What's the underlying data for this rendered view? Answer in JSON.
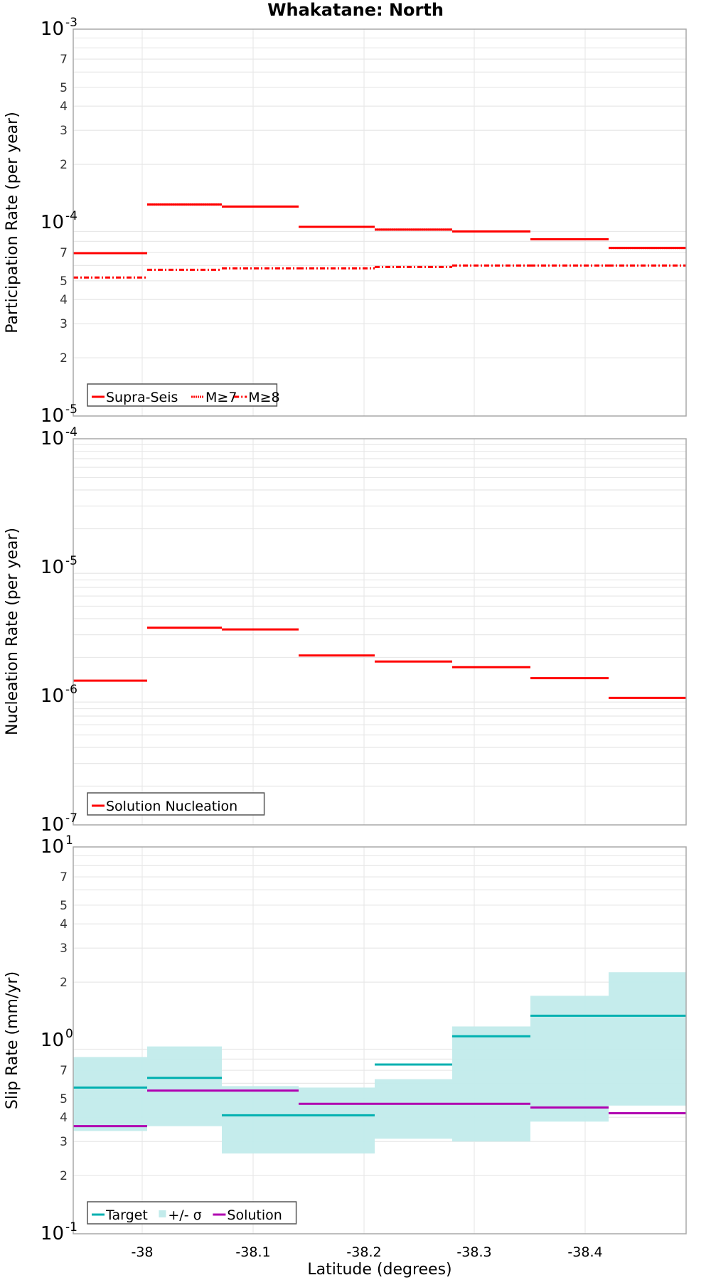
{
  "chart_data": [
    {
      "type": "line",
      "title": "Whakatane: North",
      "xlabel": "Latitude (degrees)",
      "ylabel": "Participation Rate (per year)",
      "yscale": "log",
      "ylim": [
        1e-05,
        0.001
      ],
      "xlim": [
        -37.938,
        -38.491
      ],
      "grid": true,
      "legend_position": "lower left",
      "x_ticks": [
        "-38",
        "-38.1",
        "-38.2",
        "-38.3",
        "-38.4"
      ],
      "y_ticks_major": [
        "10^-3",
        "10^-4",
        "10^-5"
      ],
      "y_ticks_minor": [
        "7",
        "5",
        "4",
        "3",
        "2",
        "7",
        "5",
        "4",
        "3",
        "2"
      ],
      "segments_latitude": [
        -37.938,
        -38.005,
        -38.072,
        -38.142,
        -38.21,
        -38.28,
        -38.351,
        -38.421,
        -38.491
      ],
      "series": [
        {
          "name": "Supra-Seis",
          "style": "solid",
          "color": "#ff0000",
          "values": [
            6.95e-05,
            0.000124,
            0.000121,
            9.5e-05,
            9.2e-05,
            9e-05,
            8.2e-05,
            7.4e-05
          ]
        },
        {
          "name": "M≥7",
          "style": "dotted",
          "color": "#ff0000",
          "values": [
            6.95e-05,
            0.000124,
            0.000121,
            9.5e-05,
            9.2e-05,
            9e-05,
            8.2e-05,
            7.4e-05
          ]
        },
        {
          "name": "M≥8",
          "style": "dashdot",
          "color": "#ff0000",
          "values": [
            5.2e-05,
            5.7e-05,
            5.8e-05,
            5.8e-05,
            5.9e-05,
            6e-05,
            6e-05,
            6e-05
          ]
        }
      ]
    },
    {
      "type": "line",
      "title": "",
      "xlabel": "",
      "ylabel": "Nucleation Rate (per year)",
      "yscale": "log",
      "ylim": [
        1e-07,
        0.0001
      ],
      "grid": true,
      "legend_position": "lower left",
      "y_ticks_major": [
        "10^-4",
        "10^-5",
        "10^-6",
        "10^-7"
      ],
      "series": [
        {
          "name": "Solution Nucleation",
          "style": "solid",
          "color": "#ff0000",
          "values": [
            1.32e-06,
            3.4e-06,
            3.3e-06,
            2.07e-06,
            1.86e-06,
            1.68e-06,
            1.38e-06,
            9.7e-07
          ]
        }
      ]
    },
    {
      "type": "area",
      "title": "",
      "xlabel": "Latitude (degrees)",
      "ylabel": "Slip Rate (mm/yr)",
      "yscale": "log",
      "ylim": [
        0.1,
        10
      ],
      "grid": true,
      "legend_position": "lower left",
      "x_ticks": [
        "-38",
        "-38.1",
        "-38.2",
        "-38.3",
        "-38.4"
      ],
      "y_ticks_major": [
        "10^1",
        "10^0",
        "10^-1"
      ],
      "y_ticks_minor": [
        "7",
        "5",
        "4",
        "3",
        "2",
        "7",
        "5",
        "4",
        "3",
        "2"
      ],
      "series": [
        {
          "name": "Target",
          "style": "solid",
          "color": "#00b0b0",
          "values": [
            0.57,
            0.64,
            0.41,
            0.41,
            0.75,
            1.05,
            1.34,
            1.34
          ]
        },
        {
          "name": "+/- σ",
          "style": "band",
          "color": "#c2ebeb",
          "lower": [
            0.34,
            0.36,
            0.26,
            0.26,
            0.31,
            0.3,
            0.38,
            0.46
          ],
          "upper": [
            0.82,
            0.93,
            0.58,
            0.57,
            0.63,
            1.18,
            1.7,
            2.25
          ]
        },
        {
          "name": "Solution",
          "style": "solid",
          "color": "#b000b0",
          "values": [
            0.36,
            0.55,
            0.55,
            0.47,
            0.47,
            0.47,
            0.45,
            0.42
          ]
        }
      ]
    }
  ],
  "labels": {
    "title": "Whakatane: North",
    "xlabel": "Latitude (degrees)",
    "panel1_ylabel": "Participation Rate (per year)",
    "panel2_ylabel": "Nucleation Rate (per year)",
    "panel3_ylabel": "Slip Rate (mm/yr)",
    "legend1": [
      "Supra-Seis",
      "M≥7",
      "M≥8"
    ],
    "legend2": [
      "Solution Nucleation"
    ],
    "legend3": [
      "Target",
      "+/- σ",
      "Solution"
    ]
  },
  "colors": {
    "red": "#ff0000",
    "target": "#00b0b0",
    "band": "#c2ebeb",
    "solution": "#b000b0",
    "grid": "#e8e8e8",
    "frame": "#a8a8a8"
  }
}
